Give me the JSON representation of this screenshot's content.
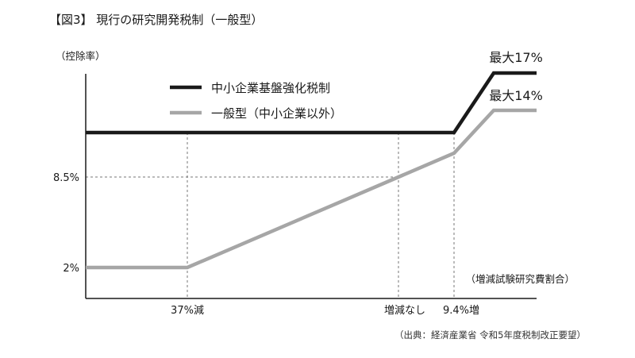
{
  "figure_title": "【図3】 現行の研究開発税制（一般型）",
  "source_note": "（出典：経済産業省 令和5年度税制改正要望）",
  "chart_data": {
    "type": "line",
    "title": "【図3】 現行の研究開発税制（一般型）",
    "ylabel": "（控除率）",
    "xlabel": "（増減試験研究費割合）",
    "y_tick_labels": [
      "2%",
      "8.5%"
    ],
    "x_tick_labels": [
      "37%減",
      "増減なし",
      "9.4%増"
    ],
    "legend_position": "top-left",
    "grid": false,
    "series": [
      {
        "name": "中小企業基盤強化税制",
        "color": "#1a1a1a",
        "end_label": "最大17%",
        "points": [
          {
            "x": -50,
            "y": 12
          },
          {
            "x": 9.4,
            "y": 12
          },
          {
            "x": 15,
            "y": 17
          },
          {
            "x": 20,
            "y": 17
          }
        ]
      },
      {
        "name": "一般型（中小企業以外）",
        "color": "#a6a6a6",
        "end_label": "最大14%",
        "points": [
          {
            "x": -50,
            "y": 2
          },
          {
            "x": -37,
            "y": 2
          },
          {
            "x": 0,
            "y": 8.5
          },
          {
            "x": 9.4,
            "y": 10
          },
          {
            "x": 15,
            "y": 14
          },
          {
            "x": 20,
            "y": 14
          }
        ]
      }
    ],
    "reference_lines": [
      {
        "axis": "y",
        "value": 8.5,
        "to_x": 0
      },
      {
        "axis": "x",
        "value": -37
      },
      {
        "axis": "x",
        "value": 0
      },
      {
        "axis": "x",
        "value": 9.4
      }
    ]
  }
}
